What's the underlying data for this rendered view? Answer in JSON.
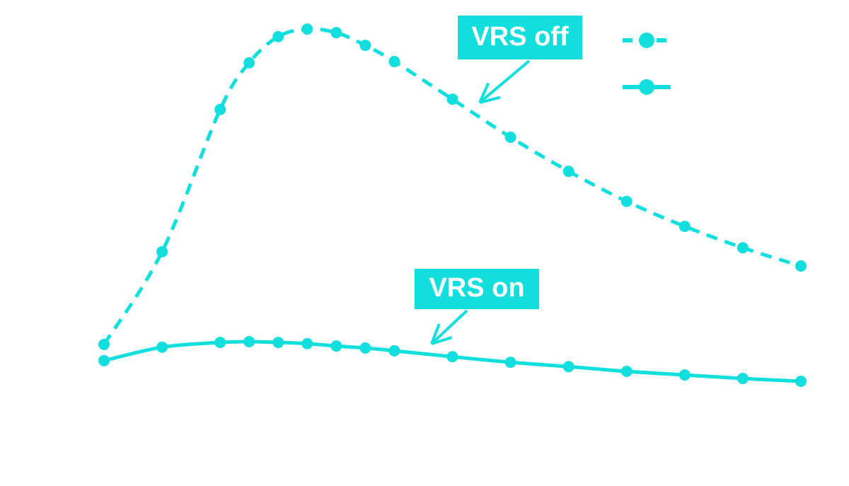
{
  "chart_data": {
    "type": "line",
    "x": [
      0,
      2,
      4,
      5,
      6,
      7,
      8,
      9,
      10,
      12,
      14,
      16,
      18,
      20,
      22,
      24
    ],
    "xlim": [
      0,
      24
    ],
    "ylim": [
      0,
      100
    ],
    "series": [
      {
        "name": "VRS off",
        "color": "#12dede",
        "dash": true,
        "values": [
          20.2,
          43.6,
          79.5,
          91.3,
          97.9,
          99.8,
          98.9,
          95.7,
          91.6,
          82.1,
          72.5,
          63.9,
          56.3,
          50.0,
          44.6,
          40.0
        ]
      },
      {
        "name": "VRS on",
        "color": "#12dede",
        "dash": false,
        "values": [
          16.1,
          19.5,
          20.7,
          20.9,
          20.7,
          20.4,
          19.8,
          19.3,
          18.6,
          17.1,
          15.7,
          14.6,
          13.4,
          12.5,
          11.6,
          10.9
        ]
      }
    ]
  }
}
